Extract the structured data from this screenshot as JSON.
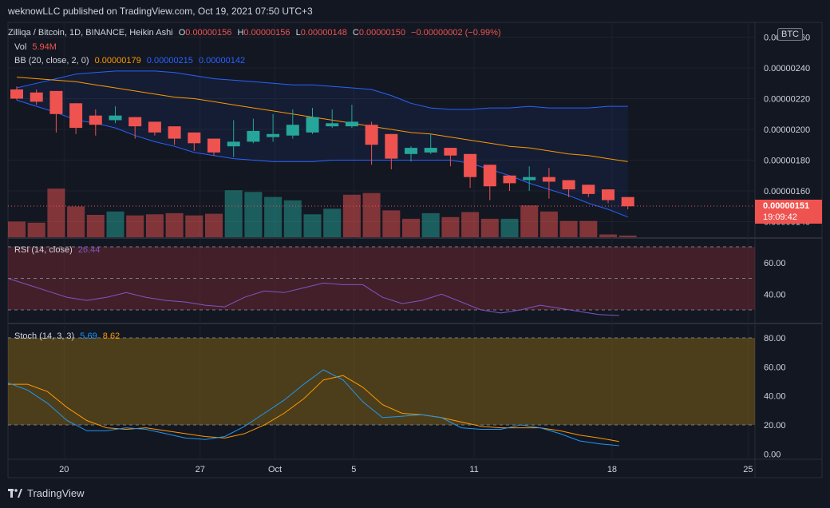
{
  "header": {
    "published_text": "weknowLLC published on TradingView.com, Oct 19, 2021 07:50 UTC+3"
  },
  "main_legend": {
    "symbol": "Zilliqa / Bitcoin, 1D, BINANCE, Heikin Ashi",
    "o_label": "O",
    "o_value": "0.00000156",
    "h_label": "H",
    "h_value": "0.00000156",
    "l_label": "L",
    "l_value": "0.00000148",
    "c_label": "C",
    "c_value": "0.00000150",
    "change": "−0.00000002 (−0.99%)"
  },
  "vol_legend": {
    "label": "Vol",
    "value": "5.94M"
  },
  "bb_legend": {
    "label": "BB (20, close, 2, 0)",
    "basis": "0.00000179",
    "upper": "0.00000215",
    "lower": "0.00000142"
  },
  "rsi_legend": {
    "label": "RSI (14, close)",
    "value": "26.44"
  },
  "stoch_legend": {
    "label": "Stoch (14, 3, 3)",
    "k": "5.69",
    "d": "8.62"
  },
  "currency_badge": "BTC",
  "price_label": {
    "price": "0.00000151",
    "countdown": "19:09:42"
  },
  "footer_brand": "TradingView",
  "colors": {
    "bull": "#26a69a",
    "bear": "#ef5350",
    "bb_upper_lower": "#2962ff",
    "bb_basis": "#ff9800",
    "rsi": "#7e57c2",
    "stoch_k": "#2196f3",
    "stoch_d": "#ff9800"
  },
  "chart_data": [
    {
      "type": "candlestick",
      "title": "Zilliqa / Bitcoin, 1D, BINANCE, Heikin Ashi",
      "price_axis_ticks": [
        "0.00000140",
        "0.00000160",
        "0.00000180",
        "0.00000200",
        "0.00000220",
        "0.00000240",
        "0.00000260"
      ],
      "time_axis_ticks": [
        "20",
        "27",
        "Oct",
        "5",
        "11",
        "18",
        "25"
      ],
      "ylim": [
        1.35e-06,
        2.65e-06
      ],
      "candles": [
        {
          "o": 2.26,
          "h": 2.28,
          "l": 2.19,
          "c": 2.2
        },
        {
          "o": 2.24,
          "h": 2.26,
          "l": 2.16,
          "c": 2.18
        },
        {
          "o": 2.25,
          "h": 2.25,
          "l": 1.98,
          "c": 2.1
        },
        {
          "o": 2.17,
          "h": 2.17,
          "l": 1.97,
          "c": 2.01
        },
        {
          "o": 2.09,
          "h": 2.13,
          "l": 1.96,
          "c": 2.03
        },
        {
          "o": 2.06,
          "h": 2.15,
          "l": 2.04,
          "c": 2.09
        },
        {
          "o": 2.08,
          "h": 2.08,
          "l": 1.94,
          "c": 2.02
        },
        {
          "o": 2.05,
          "h": 2.05,
          "l": 1.96,
          "c": 1.98
        },
        {
          "o": 2.02,
          "h": 2.02,
          "l": 1.9,
          "c": 1.94
        },
        {
          "o": 1.98,
          "h": 1.98,
          "l": 1.86,
          "c": 1.91
        },
        {
          "o": 1.94,
          "h": 1.94,
          "l": 1.83,
          "c": 1.85
        },
        {
          "o": 1.89,
          "h": 2.06,
          "l": 1.82,
          "c": 1.92
        },
        {
          "o": 1.92,
          "h": 2.07,
          "l": 1.91,
          "c": 1.99
        },
        {
          "o": 1.95,
          "h": 2.1,
          "l": 1.92,
          "c": 1.97
        },
        {
          "o": 1.96,
          "h": 2.13,
          "l": 1.94,
          "c": 2.03
        },
        {
          "o": 1.98,
          "h": 2.14,
          "l": 1.97,
          "c": 2.08
        },
        {
          "o": 2.02,
          "h": 2.13,
          "l": 2.01,
          "c": 2.04
        },
        {
          "o": 2.02,
          "h": 2.16,
          "l": 2.01,
          "c": 2.05
        },
        {
          "o": 2.03,
          "h": 2.05,
          "l": 1.77,
          "c": 1.9
        },
        {
          "o": 1.97,
          "h": 1.97,
          "l": 1.74,
          "c": 1.81
        },
        {
          "o": 1.84,
          "h": 1.89,
          "l": 1.79,
          "c": 1.88
        },
        {
          "o": 1.85,
          "h": 1.97,
          "l": 1.84,
          "c": 1.88
        },
        {
          "o": 1.88,
          "h": 1.88,
          "l": 1.76,
          "c": 1.83
        },
        {
          "o": 1.84,
          "h": 1.84,
          "l": 1.62,
          "c": 1.69
        },
        {
          "o": 1.77,
          "h": 1.77,
          "l": 1.54,
          "c": 1.63
        },
        {
          "o": 1.7,
          "h": 1.7,
          "l": 1.6,
          "c": 1.65
        },
        {
          "o": 1.67,
          "h": 1.76,
          "l": 1.6,
          "c": 1.69
        },
        {
          "o": 1.69,
          "h": 1.75,
          "l": 1.55,
          "c": 1.66
        },
        {
          "o": 1.67,
          "h": 1.67,
          "l": 1.56,
          "c": 1.61
        },
        {
          "o": 1.64,
          "h": 1.64,
          "l": 1.56,
          "c": 1.58
        },
        {
          "o": 1.61,
          "h": 1.61,
          "l": 1.52,
          "c": 1.54
        },
        {
          "o": 1.56,
          "h": 1.56,
          "l": 1.48,
          "c": 1.5
        }
      ],
      "price_scale_note": "candle values in units of 1e-6 BTC",
      "bb_upper": [
        2.27,
        2.3,
        2.33,
        2.36,
        2.37,
        2.38,
        2.38,
        2.38,
        2.37,
        2.35,
        2.33,
        2.32,
        2.31,
        2.3,
        2.29,
        2.29,
        2.28,
        2.27,
        2.26,
        2.22,
        2.17,
        2.14,
        2.13,
        2.13,
        2.14,
        2.14,
        2.15,
        2.14,
        2.14,
        2.14,
        2.15,
        2.15
      ],
      "bb_basis": [
        2.34,
        2.33,
        2.32,
        2.31,
        2.29,
        2.27,
        2.25,
        2.23,
        2.21,
        2.2,
        2.18,
        2.16,
        2.14,
        2.12,
        2.1,
        2.08,
        2.06,
        2.04,
        2.02,
        2.0,
        1.98,
        1.97,
        1.95,
        1.93,
        1.91,
        1.89,
        1.88,
        1.86,
        1.84,
        1.83,
        1.81,
        1.79
      ],
      "bb_lower": [
        2.19,
        2.15,
        2.11,
        2.06,
        2.04,
        2.01,
        1.96,
        1.92,
        1.89,
        1.85,
        1.83,
        1.81,
        1.8,
        1.79,
        1.79,
        1.79,
        1.8,
        1.8,
        1.8,
        1.8,
        1.8,
        1.8,
        1.8,
        1.78,
        1.74,
        1.7,
        1.65,
        1.61,
        1.57,
        1.52,
        1.48,
        1.43
      ],
      "volume_bull": [
        false,
        false,
        false,
        false,
        false,
        true,
        false,
        false,
        false,
        false,
        false,
        true,
        true,
        true,
        true,
        true,
        true,
        false,
        false,
        false,
        false,
        true,
        false,
        false,
        false,
        true,
        false,
        false,
        false,
        false,
        false,
        false
      ],
      "volume": [
        28,
        26,
        87,
        55,
        40,
        46,
        39,
        41,
        43,
        39,
        42,
        84,
        81,
        72,
        66,
        41,
        51,
        76,
        79,
        48,
        33,
        43,
        36,
        45,
        33,
        33,
        57,
        46,
        29,
        29,
        5,
        3
      ]
    },
    {
      "type": "line",
      "title": "RSI (14, close)",
      "ylim": [
        20,
        75
      ],
      "ticks": [
        "40.00",
        "60.00"
      ],
      "bands": [
        30,
        50,
        70
      ],
      "values": [
        50,
        46,
        42,
        38,
        36,
        38,
        41,
        38,
        36,
        35,
        33,
        32,
        38,
        42,
        41,
        44,
        47,
        46,
        46,
        38,
        34,
        36,
        40,
        35,
        30,
        28,
        30,
        33,
        31,
        29,
        27,
        26.44
      ]
    },
    {
      "type": "line",
      "title": "Stoch (14, 3, 3)",
      "ylim": [
        0,
        85
      ],
      "ticks": [
        "0.00",
        "20.00",
        "40.00",
        "60.00",
        "80.00"
      ],
      "bands": [
        20,
        80
      ],
      "series": [
        {
          "name": "K",
          "values": [
            49,
            44,
            35,
            23,
            16,
            16,
            18,
            17,
            14,
            11,
            10,
            12,
            19,
            28,
            37,
            48,
            58,
            51,
            36,
            25,
            26,
            27,
            25,
            18,
            17,
            17,
            20,
            18,
            14,
            9,
            7,
            5.69
          ]
        },
        {
          "name": "D",
          "values": [
            48,
            48,
            43,
            32,
            23,
            18,
            17,
            18,
            16,
            14,
            12,
            11,
            14,
            20,
            28,
            38,
            51,
            54,
            46,
            34,
            28,
            27,
            25,
            22,
            19,
            18,
            18,
            18,
            16,
            13,
            11,
            8.62
          ]
        }
      ]
    }
  ]
}
